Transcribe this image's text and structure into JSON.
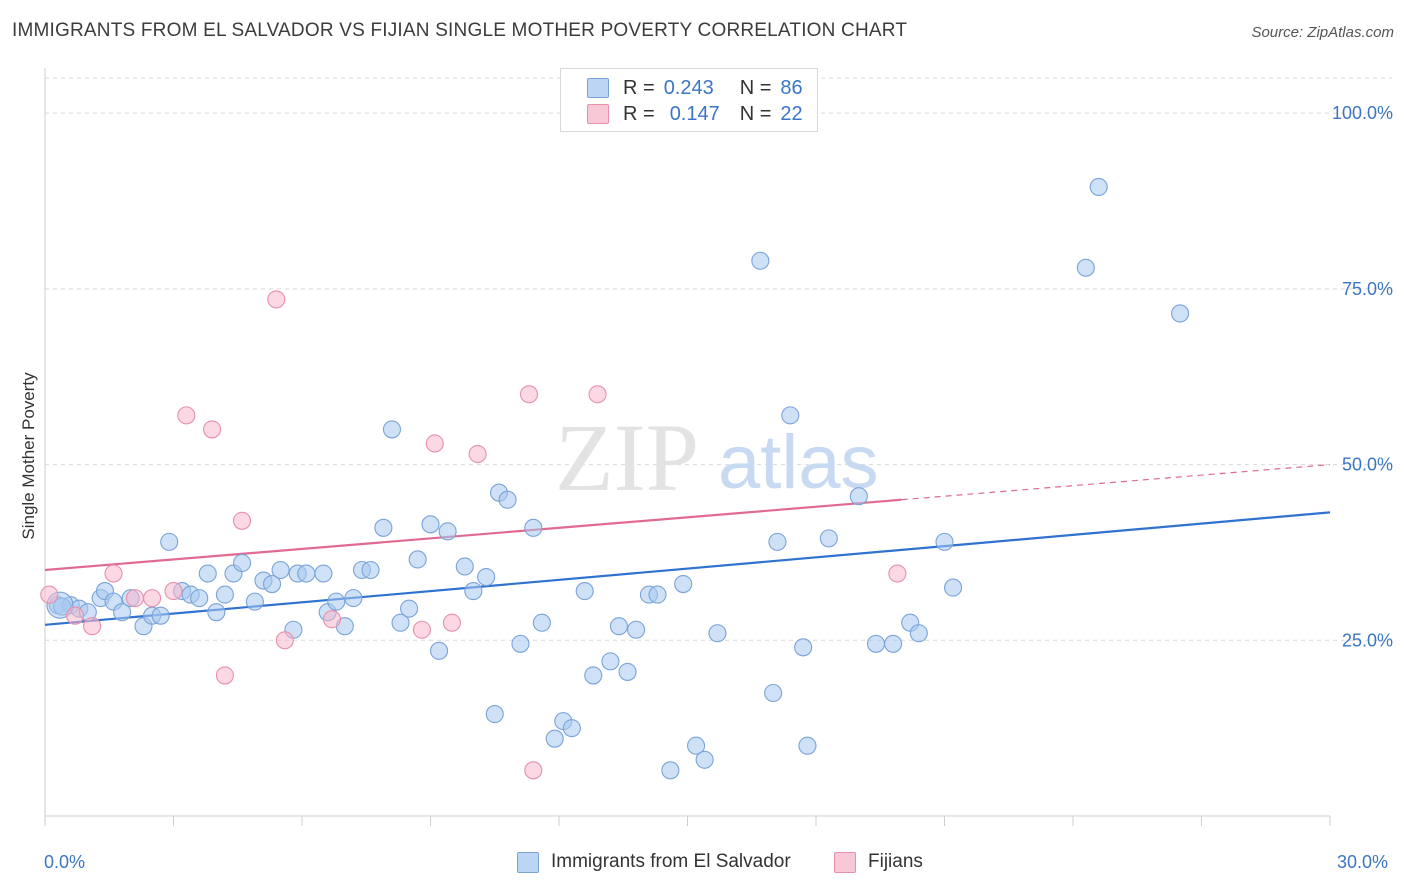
{
  "title": "IMMIGRANTS FROM EL SALVADOR VS FIJIAN SINGLE MOTHER POVERTY CORRELATION CHART",
  "source": "Source: ZipAtlas.com",
  "watermark": {
    "zip": "ZIP",
    "atlas": "atlas"
  },
  "legend": {
    "rows": [
      {
        "r_label": "R =",
        "r_value": "0.243",
        "n_label": "N =",
        "n_value": "86"
      },
      {
        "r_label": "R =",
        "r_value": "0.147",
        "n_label": "N =",
        "n_value": "22"
      }
    ]
  },
  "bottom_legend": {
    "series1": "Immigrants from El Salvador",
    "series2": "Fijians"
  },
  "axis": {
    "x_min_label": "0.0%",
    "x_max_label": "30.0%"
  },
  "colors": {
    "blue_fill": "#a8c8f0",
    "blue_stroke": "#7aa3d8",
    "blue_line": "#2f72d0",
    "pink_fill": "#f7b8cc",
    "pink_stroke": "#e690ac",
    "pink_line": "#e06a92",
    "tick_text": "#3b76c4",
    "grid": "#d9d9d9"
  },
  "chart_data": {
    "type": "scatter",
    "title": "IMMIGRANTS FROM EL SALVADOR VS FIJIAN SINGLE MOTHER POVERTY CORRELATION CHART",
    "xlabel": "",
    "ylabel": "Single Mother Poverty",
    "xlim": [
      0,
      30
    ],
    "ylim": [
      0,
      105
    ],
    "y_ticks": [
      25,
      50,
      75,
      100
    ],
    "y_tick_labels": [
      "25.0%",
      "50.0%",
      "75.0%",
      "100.0%"
    ],
    "x_tick_labels": [
      "0.0%",
      "30.0%"
    ],
    "grid": true,
    "legend_position": "top-center",
    "series": [
      {
        "name": "Immigrants from El Salvador",
        "R": 0.243,
        "N": 86,
        "trend": {
          "x": [
            0,
            30
          ],
          "y": [
            27.2,
            43.2
          ]
        },
        "points": [
          [
            0.3,
            30.0
          ],
          [
            0.6,
            30.0
          ],
          [
            0.8,
            29.5
          ],
          [
            1.0,
            29.0
          ],
          [
            1.3,
            31.0
          ],
          [
            1.4,
            32.0
          ],
          [
            1.6,
            30.5
          ],
          [
            1.8,
            29.0
          ],
          [
            2.0,
            31.0
          ],
          [
            2.3,
            27.0
          ],
          [
            2.5,
            28.5
          ],
          [
            2.7,
            28.5
          ],
          [
            2.9,
            39.0
          ],
          [
            3.2,
            32.0
          ],
          [
            3.4,
            31.5
          ],
          [
            3.6,
            31.0
          ],
          [
            3.8,
            34.5
          ],
          [
            4.0,
            29.0
          ],
          [
            4.2,
            31.5
          ],
          [
            4.4,
            34.5
          ],
          [
            4.6,
            36.0
          ],
          [
            4.9,
            30.5
          ],
          [
            5.1,
            33.5
          ],
          [
            5.3,
            33.0
          ],
          [
            5.5,
            35.0
          ],
          [
            5.8,
            26.5
          ],
          [
            5.9,
            34.5
          ],
          [
            6.1,
            34.5
          ],
          [
            6.5,
            34.5
          ],
          [
            6.6,
            29.0
          ],
          [
            6.8,
            30.5
          ],
          [
            7.0,
            27.0
          ],
          [
            7.2,
            31.0
          ],
          [
            7.4,
            35.0
          ],
          [
            7.6,
            35.0
          ],
          [
            7.9,
            41.0
          ],
          [
            8.1,
            55.0
          ],
          [
            8.3,
            27.5
          ],
          [
            8.5,
            29.5
          ],
          [
            8.7,
            36.5
          ],
          [
            9.0,
            41.5
          ],
          [
            9.2,
            23.5
          ],
          [
            9.4,
            40.5
          ],
          [
            9.8,
            35.5
          ],
          [
            10.0,
            32.0
          ],
          [
            10.3,
            34.0
          ],
          [
            10.5,
            14.5
          ],
          [
            10.6,
            46.0
          ],
          [
            10.8,
            45.0
          ],
          [
            11.1,
            24.5
          ],
          [
            11.4,
            41.0
          ],
          [
            11.6,
            27.5
          ],
          [
            11.9,
            11.0
          ],
          [
            12.1,
            13.5
          ],
          [
            12.3,
            12.5
          ],
          [
            12.6,
            32.0
          ],
          [
            12.8,
            20.0
          ],
          [
            13.2,
            22.0
          ],
          [
            13.4,
            27.0
          ],
          [
            13.6,
            20.5
          ],
          [
            13.8,
            26.5
          ],
          [
            14.1,
            31.5
          ],
          [
            14.3,
            31.5
          ],
          [
            14.6,
            6.5
          ],
          [
            14.9,
            33.0
          ],
          [
            15.2,
            10.0
          ],
          [
            15.4,
            8.0
          ],
          [
            15.7,
            26.0
          ],
          [
            16.7,
            79.0
          ],
          [
            17.0,
            17.5
          ],
          [
            17.1,
            39.0
          ],
          [
            17.4,
            57.0
          ],
          [
            17.7,
            24.0
          ],
          [
            17.8,
            10.0
          ],
          [
            18.3,
            39.5
          ],
          [
            19.0,
            45.5
          ],
          [
            19.4,
            24.5
          ],
          [
            19.8,
            24.5
          ],
          [
            20.2,
            27.5
          ],
          [
            20.4,
            26.0
          ],
          [
            21.0,
            39.0
          ],
          [
            21.2,
            32.5
          ],
          [
            24.3,
            78.0
          ],
          [
            24.6,
            89.5
          ],
          [
            26.5,
            71.5
          ],
          [
            0.4,
            29.8
          ]
        ]
      },
      {
        "name": "Fijians",
        "R": 0.147,
        "N": 22,
        "trend": {
          "x": [
            0,
            20
          ],
          "y": [
            35.0,
            45.0
          ],
          "dashed_extension": {
            "x": [
              20,
              30
            ],
            "y": [
              45.0,
              50.0
            ]
          }
        },
        "points": [
          [
            0.1,
            31.5
          ],
          [
            0.7,
            28.5
          ],
          [
            1.1,
            27.0
          ],
          [
            1.6,
            34.5
          ],
          [
            2.1,
            31.0
          ],
          [
            2.5,
            31.0
          ],
          [
            3.0,
            32.0
          ],
          [
            3.3,
            57.0
          ],
          [
            3.9,
            55.0
          ],
          [
            4.2,
            20.0
          ],
          [
            4.6,
            42.0
          ],
          [
            5.4,
            73.5
          ],
          [
            5.6,
            25.0
          ],
          [
            6.7,
            28.0
          ],
          [
            8.8,
            26.5
          ],
          [
            9.1,
            53.0
          ],
          [
            9.5,
            27.5
          ],
          [
            10.1,
            51.5
          ],
          [
            11.3,
            60.0
          ],
          [
            11.4,
            6.5
          ],
          [
            12.9,
            60.0
          ],
          [
            19.9,
            34.5
          ]
        ]
      }
    ]
  }
}
